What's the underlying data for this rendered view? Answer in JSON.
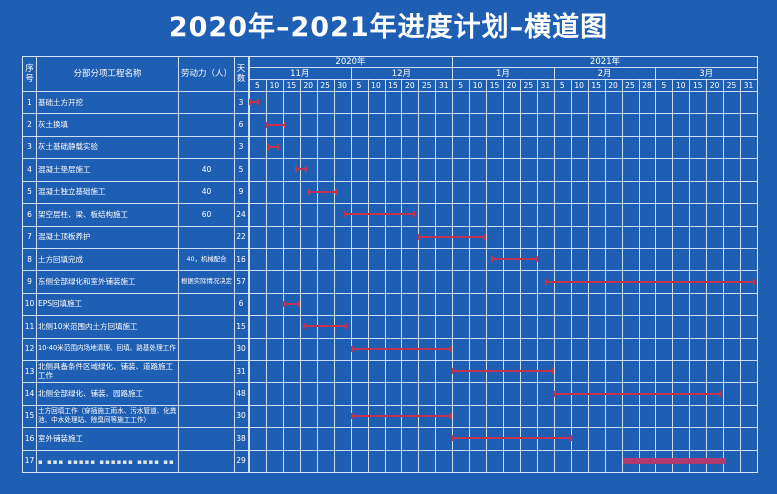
{
  "title": "2020年–2021年进度计划–横道图",
  "headers": {
    "seq": [
      "序",
      "号"
    ],
    "name": "分部分项工程名称",
    "labor": "劳动力（人）",
    "days": [
      "天",
      "数"
    ]
  },
  "years": [
    "2020年",
    "2021年"
  ],
  "months": [
    "11月",
    "12月",
    "1月",
    "2月",
    "3月"
  ],
  "day_ticks": [
    "5",
    "10",
    "15",
    "20",
    "25",
    "30",
    "5",
    "10",
    "15",
    "20",
    "25",
    "31",
    "5",
    "10",
    "15",
    "20",
    "25",
    "31",
    "5",
    "10",
    "15",
    "20",
    "25",
    "28",
    "5",
    "10",
    "15",
    "20",
    "25",
    "31"
  ],
  "tasks": [
    {
      "no": "1",
      "name": "基础土方开挖",
      "labor": "",
      "days": "3",
      "start": 0,
      "end": 0.6
    },
    {
      "no": "2",
      "name": "灰土换填",
      "labor": "",
      "days": "6",
      "start": 1,
      "end": 2.2
    },
    {
      "no": "3",
      "name": "灰土基础静载实验",
      "labor": "",
      "days": "3",
      "start": 1.1,
      "end": 1.8
    },
    {
      "no": "4",
      "name": "混凝土垫层施工",
      "labor": "40",
      "days": "5",
      "start": 2.7,
      "end": 3.4
    },
    {
      "no": "5",
      "name": "混凝土独立基础施工",
      "labor": "40",
      "days": "9",
      "start": 3.5,
      "end": 5.2
    },
    {
      "no": "6",
      "name": "架空层柱、梁、板结构施工",
      "labor": "60",
      "days": "24",
      "start": 5.6,
      "end": 9.8
    },
    {
      "no": "7",
      "name": "混凝土顶板养护",
      "labor": "",
      "days": "22",
      "start": 10,
      "end": 14
    },
    {
      "no": "8",
      "name": "土方回填完成",
      "labor": "40，机械配合",
      "days": "16",
      "start": 14.3,
      "end": 17.1
    },
    {
      "no": "9",
      "name": "东侧全部绿化和室外铺装施工",
      "labor": "根据实际情况决定",
      "days": "57",
      "start": 17.5,
      "end": 29.9
    },
    {
      "no": "10",
      "name": "EPS回填施工",
      "labor": "",
      "days": "6",
      "start": 2,
      "end": 3
    },
    {
      "no": "11",
      "name": "北侧10米范围内土方回填施工",
      "labor": "",
      "days": "15",
      "start": 3.2,
      "end": 5.8
    },
    {
      "no": "12",
      "name": "10-40米范围内场地清理、回填、路基处理工作",
      "labor": "",
      "days": "30",
      "start": 6.0,
      "end": 12.0
    },
    {
      "no": "13",
      "name": "北侧具备条件区域绿化、铺装、道路施工工作",
      "labor": "",
      "days": "31",
      "start": 12,
      "end": 18
    },
    {
      "no": "14",
      "name": "北侧全部绿化、铺装、园路施工",
      "labor": "",
      "days": "48",
      "start": 18,
      "end": 27.9
    },
    {
      "no": "15",
      "name": "土方回填工作（穿插施工雨水、污水管道、化粪池、中水处理站、除臭间等施工工作）",
      "labor": "",
      "days": "30",
      "start": 6.0,
      "end": 12.0
    },
    {
      "no": "16",
      "name": "室外铺装施工",
      "labor": "",
      "days": "38",
      "start": 12,
      "end": 19.1
    },
    {
      "no": "17",
      "name": "",
      "labor": "",
      "days": "29",
      "start": 22.1,
      "end": 28.2
    }
  ],
  "colors": {
    "background": "#1f5fb3",
    "grid": "#ebf5ff",
    "bar": "#c2334f"
  }
}
